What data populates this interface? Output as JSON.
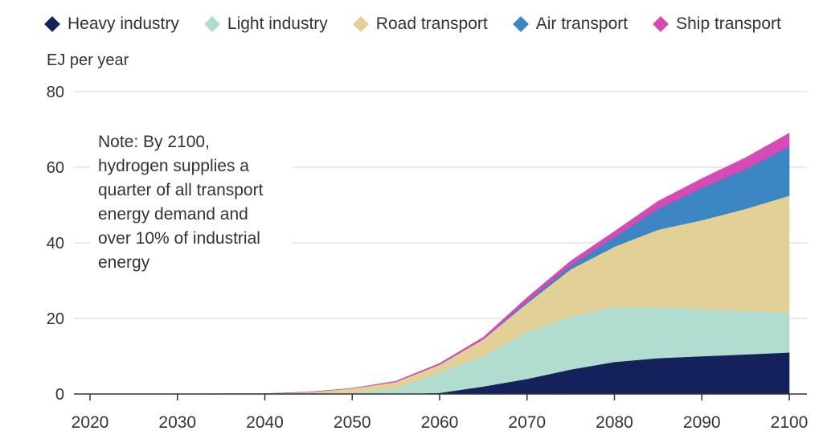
{
  "chart_data": {
    "type": "area",
    "stacked": true,
    "ylabel": "EJ per year",
    "ylim": [
      0,
      80
    ],
    "yticks": [
      0,
      20,
      40,
      60,
      80
    ],
    "xlim": [
      2020,
      2100
    ],
    "xticks": [
      2020,
      2030,
      2040,
      2050,
      2060,
      2070,
      2080,
      2090,
      2100
    ],
    "grid": "horizontal",
    "legend_position": "top",
    "annotation": "Note: By 2100, hydrogen supplies a quarter of all transport energy demand and over 10% of industrial energy",
    "x": [
      2020,
      2030,
      2040,
      2045,
      2050,
      2055,
      2060,
      2065,
      2070,
      2075,
      2080,
      2085,
      2090,
      2095,
      2100
    ],
    "series": [
      {
        "name": "Heavy industry",
        "color": "#14215b",
        "values": [
          0,
          0,
          0,
          0,
          0,
          0,
          0.3,
          2,
          4,
          6.5,
          8.5,
          9.5,
          10,
          10.5,
          11
        ]
      },
      {
        "name": "Light industry",
        "color": "#b1ddd0",
        "values": [
          0,
          0,
          0,
          0,
          0.3,
          1.5,
          5.5,
          8,
          12.5,
          14,
          14.5,
          13.5,
          12.5,
          11.5,
          10.5
        ]
      },
      {
        "name": "Road transport",
        "color": "#e2d096",
        "values": [
          0,
          0,
          0.1,
          0.5,
          1.2,
          1.7,
          2,
          4.5,
          7.5,
          12.5,
          16,
          20.5,
          23.5,
          27,
          31
        ]
      },
      {
        "name": "Air transport",
        "color": "#3b86c3",
        "values": [
          0,
          0,
          0,
          0,
          0,
          0,
          0,
          0,
          0.5,
          1,
          2.5,
          5.5,
          8.5,
          10.5,
          13
        ]
      },
      {
        "name": "Ship transport",
        "color": "#d54ab4",
        "values": [
          0,
          0,
          0,
          0,
          0,
          0.2,
          0.3,
          0.5,
          1,
          1.2,
          1.5,
          2,
          2.5,
          3,
          3.5
        ]
      }
    ]
  }
}
